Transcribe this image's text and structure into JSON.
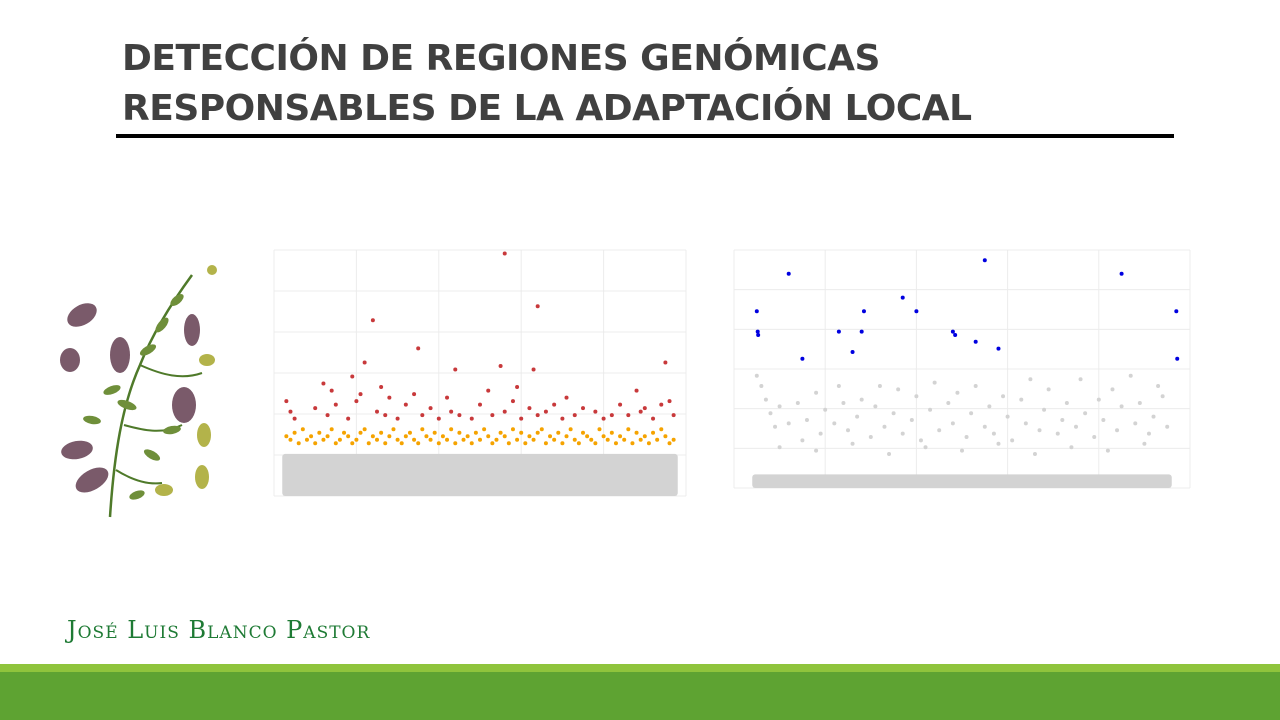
{
  "slide": {
    "title_line1": "DETECCIÓN DE REGIONES GENÓMICAS",
    "title_line2": "RESPONSABLES DE LA ADAPTACIÓN LOCAL",
    "author": "José Luis Blanco Pastor",
    "illustration": "alfalfa-plant-botanical-illustration"
  },
  "colors": {
    "title": "#404040",
    "author": "#1e7a34",
    "footer_light": "#8fc43c",
    "footer_dark": "#5ea332",
    "background_snps": "#d3d3d3",
    "candidate_orange": "#f5a300",
    "candidate_red": "#c8393b",
    "candidate_blue": "#0000e0"
  },
  "chart_data": [
    {
      "type": "scatter",
      "title": "",
      "xlabel": "",
      "ylabel": "",
      "grid": true,
      "legend": "none",
      "xlim": [
        0,
        100
      ],
      "ylim": [
        0,
        7
      ],
      "background_band": {
        "x_range": [
          2,
          98
        ],
        "y_range": [
          0,
          1.2
        ],
        "color": "#d3d3d3"
      },
      "series": [
        {
          "color": "#f5a300",
          "points": [
            [
              3,
              1.7
            ],
            [
              4,
              1.6
            ],
            [
              5,
              1.8
            ],
            [
              6,
              1.5
            ],
            [
              7,
              1.9
            ],
            [
              8,
              1.6
            ],
            [
              9,
              1.7
            ],
            [
              10,
              1.5
            ],
            [
              11,
              1.8
            ],
            [
              12,
              1.6
            ],
            [
              13,
              1.7
            ],
            [
              14,
              1.9
            ],
            [
              15,
              1.5
            ],
            [
              16,
              1.6
            ],
            [
              17,
              1.8
            ],
            [
              18,
              1.7
            ],
            [
              19,
              1.5
            ],
            [
              20,
              1.6
            ],
            [
              21,
              1.8
            ],
            [
              22,
              1.9
            ],
            [
              23,
              1.5
            ],
            [
              24,
              1.7
            ],
            [
              25,
              1.6
            ],
            [
              26,
              1.8
            ],
            [
              27,
              1.5
            ],
            [
              28,
              1.7
            ],
            [
              29,
              1.9
            ],
            [
              30,
              1.6
            ],
            [
              31,
              1.5
            ],
            [
              32,
              1.7
            ],
            [
              33,
              1.8
            ],
            [
              34,
              1.6
            ],
            [
              35,
              1.5
            ],
            [
              36,
              1.9
            ],
            [
              37,
              1.7
            ],
            [
              38,
              1.6
            ],
            [
              39,
              1.8
            ],
            [
              40,
              1.5
            ],
            [
              41,
              1.7
            ],
            [
              42,
              1.6
            ],
            [
              43,
              1.9
            ],
            [
              44,
              1.5
            ],
            [
              45,
              1.8
            ],
            [
              46,
              1.6
            ],
            [
              47,
              1.7
            ],
            [
              48,
              1.5
            ],
            [
              49,
              1.8
            ],
            [
              50,
              1.6
            ],
            [
              51,
              1.9
            ],
            [
              52,
              1.7
            ],
            [
              53,
              1.5
            ],
            [
              54,
              1.6
            ],
            [
              55,
              1.8
            ],
            [
              56,
              1.7
            ],
            [
              57,
              1.5
            ],
            [
              58,
              1.9
            ],
            [
              59,
              1.6
            ],
            [
              60,
              1.8
            ],
            [
              61,
              1.5
            ],
            [
              62,
              1.7
            ],
            [
              63,
              1.6
            ],
            [
              64,
              1.8
            ],
            [
              65,
              1.9
            ],
            [
              66,
              1.5
            ],
            [
              67,
              1.7
            ],
            [
              68,
              1.6
            ],
            [
              69,
              1.8
            ],
            [
              70,
              1.5
            ],
            [
              71,
              1.7
            ],
            [
              72,
              1.9
            ],
            [
              73,
              1.6
            ],
            [
              74,
              1.5
            ],
            [
              75,
              1.8
            ],
            [
              76,
              1.7
            ],
            [
              77,
              1.6
            ],
            [
              78,
              1.5
            ],
            [
              79,
              1.9
            ],
            [
              80,
              1.7
            ],
            [
              81,
              1.6
            ],
            [
              82,
              1.8
            ],
            [
              83,
              1.5
            ],
            [
              84,
              1.7
            ],
            [
              85,
              1.6
            ],
            [
              86,
              1.9
            ],
            [
              87,
              1.5
            ],
            [
              88,
              1.8
            ],
            [
              89,
              1.6
            ],
            [
              90,
              1.7
            ],
            [
              91,
              1.5
            ],
            [
              92,
              1.8
            ],
            [
              93,
              1.6
            ],
            [
              94,
              1.9
            ],
            [
              95,
              1.7
            ],
            [
              96,
              1.5
            ],
            [
              97,
              1.6
            ]
          ]
        },
        {
          "color": "#c8393b",
          "points": [
            [
              3,
              2.7
            ],
            [
              4,
              2.4
            ],
            [
              5,
              2.2
            ],
            [
              10,
              2.5
            ],
            [
              12,
              3.2
            ],
            [
              13,
              2.3
            ],
            [
              14,
              3.0
            ],
            [
              15,
              2.6
            ],
            [
              18,
              2.2
            ],
            [
              19,
              3.4
            ],
            [
              20,
              2.7
            ],
            [
              21,
              2.9
            ],
            [
              22,
              3.8
            ],
            [
              24,
              5.0
            ],
            [
              25,
              2.4
            ],
            [
              26,
              3.1
            ],
            [
              27,
              2.3
            ],
            [
              28,
              2.8
            ],
            [
              30,
              2.2
            ],
            [
              32,
              2.6
            ],
            [
              34,
              2.9
            ],
            [
              35,
              4.2
            ],
            [
              36,
              2.3
            ],
            [
              38,
              2.5
            ],
            [
              40,
              2.2
            ],
            [
              42,
              2.8
            ],
            [
              43,
              2.4
            ],
            [
              44,
              3.6
            ],
            [
              45,
              2.3
            ],
            [
              48,
              2.2
            ],
            [
              50,
              2.6
            ],
            [
              52,
              3.0
            ],
            [
              53,
              2.3
            ],
            [
              55,
              3.7
            ],
            [
              56,
              2.4
            ],
            [
              58,
              2.7
            ],
            [
              59,
              3.1
            ],
            [
              60,
              2.2
            ],
            [
              62,
              2.5
            ],
            [
              63,
              3.6
            ],
            [
              64,
              2.3
            ],
            [
              66,
              2.4
            ],
            [
              68,
              2.6
            ],
            [
              70,
              2.2
            ],
            [
              71,
              2.8
            ],
            [
              73,
              2.3
            ],
            [
              75,
              2.5
            ],
            [
              78,
              2.4
            ],
            [
              80,
              2.2
            ],
            [
              82,
              2.3
            ],
            [
              84,
              2.6
            ],
            [
              86,
              2.3
            ],
            [
              88,
              3.0
            ],
            [
              89,
              2.4
            ],
            [
              90,
              2.5
            ],
            [
              92,
              2.2
            ],
            [
              94,
              2.6
            ],
            [
              95,
              3.8
            ],
            [
              96,
              2.7
            ],
            [
              97,
              2.3
            ],
            [
              56,
              6.9
            ],
            [
              64,
              5.4
            ]
          ]
        }
      ]
    },
    {
      "type": "scatter",
      "title": "",
      "xlabel": "",
      "ylabel": "",
      "grid": true,
      "legend": "none",
      "xlim": [
        0,
        100
      ],
      "ylim": [
        0,
        7
      ],
      "background_band": {
        "x_range": [
          4,
          96
        ],
        "y_range": [
          0,
          0.4
        ],
        "color": "#d3d3d3"
      },
      "series": [
        {
          "color": "#d3d3d3",
          "points": [
            [
              5,
              3.3
            ],
            [
              6,
              3.0
            ],
            [
              7,
              2.6
            ],
            [
              8,
              2.2
            ],
            [
              9,
              1.8
            ],
            [
              10,
              2.4
            ],
            [
              12,
              1.9
            ],
            [
              14,
              2.5
            ],
            [
              15,
              1.4
            ],
            [
              16,
              2.0
            ],
            [
              18,
              2.8
            ],
            [
              19,
              1.6
            ],
            [
              20,
              2.3
            ],
            [
              22,
              1.9
            ],
            [
              23,
              3.0
            ],
            [
              24,
              2.5
            ],
            [
              25,
              1.7
            ],
            [
              27,
              2.1
            ],
            [
              28,
              2.6
            ],
            [
              30,
              1.5
            ],
            [
              31,
              2.4
            ],
            [
              32,
              3.0
            ],
            [
              33,
              1.8
            ],
            [
              35,
              2.2
            ],
            [
              36,
              2.9
            ],
            [
              37,
              1.6
            ],
            [
              39,
              2.0
            ],
            [
              40,
              2.7
            ],
            [
              41,
              1.4
            ],
            [
              43,
              2.3
            ],
            [
              44,
              3.1
            ],
            [
              45,
              1.7
            ],
            [
              47,
              2.5
            ],
            [
              48,
              1.9
            ],
            [
              49,
              2.8
            ],
            [
              51,
              1.5
            ],
            [
              52,
              2.2
            ],
            [
              53,
              3.0
            ],
            [
              55,
              1.8
            ],
            [
              56,
              2.4
            ],
            [
              57,
              1.6
            ],
            [
              59,
              2.7
            ],
            [
              60,
              2.1
            ],
            [
              61,
              1.4
            ],
            [
              63,
              2.6
            ],
            [
              64,
              1.9
            ],
            [
              65,
              3.2
            ],
            [
              67,
              1.7
            ],
            [
              68,
              2.3
            ],
            [
              69,
              2.9
            ],
            [
              71,
              1.6
            ],
            [
              72,
              2.0
            ],
            [
              73,
              2.5
            ],
            [
              75,
              1.8
            ],
            [
              76,
              3.2
            ],
            [
              77,
              2.2
            ],
            [
              79,
              1.5
            ],
            [
              80,
              2.6
            ],
            [
              81,
              2.0
            ],
            [
              83,
              2.9
            ],
            [
              84,
              1.7
            ],
            [
              85,
              2.4
            ],
            [
              87,
              3.3
            ],
            [
              88,
              1.9
            ],
            [
              89,
              2.5
            ],
            [
              91,
              1.6
            ],
            [
              92,
              2.1
            ],
            [
              93,
              3.0
            ],
            [
              94,
              2.7
            ],
            [
              95,
              1.8
            ],
            [
              10,
              1.2
            ],
            [
              18,
              1.1
            ],
            [
              26,
              1.3
            ],
            [
              34,
              1.0
            ],
            [
              42,
              1.2
            ],
            [
              50,
              1.1
            ],
            [
              58,
              1.3
            ],
            [
              66,
              1.0
            ],
            [
              74,
              1.2
            ],
            [
              82,
              1.1
            ],
            [
              90,
              1.3
            ]
          ]
        },
        {
          "color": "#0000e0",
          "points": [
            [
              5,
              5.2
            ],
            [
              5.2,
              4.6
            ],
            [
              5.3,
              4.5
            ],
            [
              12,
              6.3
            ],
            [
              15,
              3.8
            ],
            [
              23,
              4.6
            ],
            [
              26,
              4.0
            ],
            [
              28,
              4.6
            ],
            [
              28.5,
              5.2
            ],
            [
              37,
              5.6
            ],
            [
              40,
              5.2
            ],
            [
              48,
              4.6
            ],
            [
              48.5,
              4.5
            ],
            [
              53,
              4.3
            ],
            [
              55,
              6.7
            ],
            [
              58,
              4.1
            ],
            [
              85,
              6.3
            ],
            [
              97,
              5.2
            ],
            [
              97.2,
              3.8
            ]
          ]
        }
      ]
    }
  ]
}
